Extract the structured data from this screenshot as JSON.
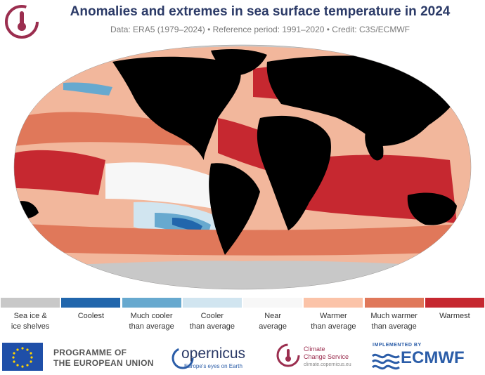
{
  "header": {
    "title": "Anomalies and extremes in sea surface temperature in 2024",
    "subtitle": "Data: ERA5 (1979–2024) • Reference period: 1991–2020 • Credit: C3S/ECMWF"
  },
  "map": {
    "projection": "robinson",
    "land_color": "#000000",
    "ice_color": "#c8c8c8"
  },
  "legend": {
    "items": [
      {
        "line1": "Sea ice &",
        "line2": "ice shelves",
        "color": "#c8c8c8"
      },
      {
        "line1": "Coolest",
        "line2": "",
        "color": "#2166ac"
      },
      {
        "line1": "Much cooler",
        "line2": "than average",
        "color": "#67a9cf"
      },
      {
        "line1": "Cooler",
        "line2": "than average",
        "color": "#d1e5f0"
      },
      {
        "line1": "Near",
        "line2": "average",
        "color": "#f7f7f7"
      },
      {
        "line1": "Warmer",
        "line2": "than average",
        "color": "#fbc3a8"
      },
      {
        "line1": "Much warmer",
        "line2": "than average",
        "color": "#e0785a"
      },
      {
        "line1": "Warmest",
        "line2": "",
        "color": "#c62830"
      }
    ]
  },
  "footer": {
    "eu_line1": "PROGRAMME OF",
    "eu_line2": "THE EUROPEAN UNION",
    "copernicus_name": "opernicus",
    "copernicus_tagline": "Europe's eyes on Earth",
    "c3s_line1": "Climate",
    "c3s_line2": "Change Service",
    "c3s_url": "climate.copernicus.eu",
    "ecmwf_implemented": "IMPLEMENTED BY",
    "ecmwf_name": "ECMWF"
  }
}
